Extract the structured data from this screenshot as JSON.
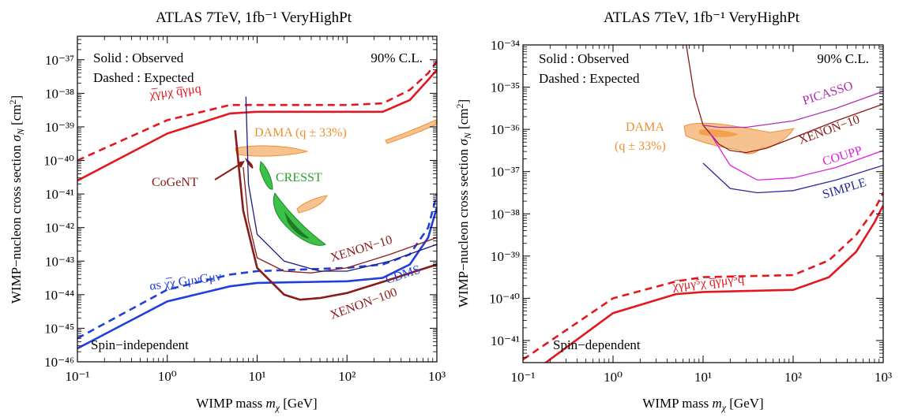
{
  "chart_data": [
    {
      "type": "line",
      "title": "ATLAS 7TeV, 1fb⁻¹ VeryHighPt",
      "xlabel": "WIMP mass mχ [GeV]",
      "ylabel": "WIMP−nucleon cross section σN [cm²]",
      "xscale": "log",
      "yscale": "log",
      "xlim": [
        0.1,
        1000
      ],
      "ylim": [
        1e-46,
        5e-37
      ],
      "x_ticks": [
        0.1,
        1,
        10,
        100,
        1000
      ],
      "y_ticks": [
        -46,
        -45,
        -44,
        -43,
        -42,
        -41,
        -40,
        -39,
        -38,
        -37
      ],
      "legend_text": {
        "line1": "Solid : Observed",
        "line2": "Dashed : Expected"
      },
      "cl_text": "90% C.L.",
      "region_text": "Spin−independent",
      "operator_labels": {
        "vector": "χ̅γμχ q̅γμq",
        "gluon": "αs χ̅χ GμνGμν"
      },
      "experiment_labels": {
        "dama": "DAMA (q ± 33%)",
        "cogent": "CoGeNT",
        "cresst": "CRESST",
        "xenon10": "XENON−10",
        "cdms": "CDMS",
        "xenon100": "XENON−100"
      },
      "series": [
        {
          "name": "χ̅γμχ q̅γμq",
          "style": "solid",
          "color": "#e3181e",
          "x": [
            0.1,
            1,
            5,
            10,
            100,
            250,
            500,
            800,
            1000
          ],
          "y": [
            -40.6,
            -39.2,
            -38.6,
            -38.55,
            -38.55,
            -38.55,
            -38.2,
            -37.6,
            -37.3
          ]
        },
        {
          "name": "χ̅γμχ q̅γμq",
          "style": "dashed",
          "color": "#e3181e",
          "x": [
            0.1,
            1,
            5,
            10,
            100,
            250,
            500,
            800,
            1000
          ],
          "y": [
            -40.0,
            -38.8,
            -38.35,
            -38.35,
            -38.35,
            -38.3,
            -37.9,
            -37.4,
            -37.05
          ]
        },
        {
          "name": "αs χ̅χ GμνGμν",
          "style": "solid",
          "color": "#1f3fdc",
          "x": [
            0.1,
            1,
            5,
            10,
            100,
            250,
            500,
            800,
            1000
          ],
          "y": [
            -45.6,
            -44.2,
            -43.75,
            -43.65,
            -43.6,
            -43.5,
            -43.1,
            -42.3,
            -41.4
          ]
        },
        {
          "name": "αs χ̅χ GμνGμν",
          "style": "dashed",
          "color": "#1f3fdc",
          "x": [
            0.1,
            1,
            5,
            10,
            100,
            250,
            500,
            800,
            1000
          ],
          "y": [
            -45.3,
            -43.85,
            -43.4,
            -43.3,
            -43.2,
            -43.1,
            -42.8,
            -42.0,
            -41.0
          ]
        },
        {
          "name": "XENON−100",
          "style": "solid",
          "color": "#8b1a1a",
          "x": [
            5.7,
            7,
            10,
            20,
            30,
            50,
            100,
            300,
            1000
          ],
          "y": [
            -39.1,
            -41.5,
            -43.2,
            -44.0,
            -44.15,
            -44.1,
            -43.95,
            -43.55,
            -43.1
          ]
        },
        {
          "name": "XENON−10",
          "style": "solid",
          "color": "#8b1a1a",
          "x": [
            7,
            8,
            10,
            20,
            40,
            100,
            300,
            1000
          ],
          "y": [
            -40.2,
            -41.8,
            -42.9,
            -43.3,
            -43.35,
            -43.2,
            -42.8,
            -42.3
          ]
        },
        {
          "name": "CDMS",
          "style": "solid",
          "color": "#1a1a8a",
          "x": [
            7.5,
            8,
            10,
            20,
            50,
            100,
            300,
            1000
          ],
          "y": [
            -38.1,
            -40.7,
            -42.2,
            -43.0,
            -43.3,
            -43.3,
            -43.0,
            -42.5
          ]
        }
      ]
    },
    {
      "type": "line",
      "title": "ATLAS 7TeV, 1fb⁻¹ VeryHighPt",
      "xlabel": "WIMP mass mχ [GeV]",
      "ylabel": "WIMP−nucleon cross section σN [cm²]",
      "xscale": "log",
      "yscale": "log",
      "xlim": [
        0.1,
        1000
      ],
      "ylim": [
        3e-42,
        1e-34
      ],
      "x_ticks": [
        0.1,
        1,
        10,
        100,
        1000
      ],
      "y_ticks": [
        -41,
        -40,
        -39,
        -38,
        -37,
        -36,
        -35,
        -34
      ],
      "legend_text": {
        "line1": "Solid : Observed",
        "line2": "Dashed : Expected"
      },
      "cl_text": "90% C.L.",
      "region_text": "Spin−dependent",
      "operator_labels": {
        "axial": "χ̅γμγ⁵χ q̅γμγ⁵q"
      },
      "experiment_labels": {
        "dama": "DAMA",
        "dama2": "(q ± 33%)",
        "picasso": "PICASSO",
        "xenon10": "XENON−10",
        "coupp": "COUPP",
        "simple": "SIMPLE"
      },
      "series": [
        {
          "name": "χ̅γμγ⁵χ q̅γμγ⁵q",
          "style": "solid",
          "color": "#e3181e",
          "x": [
            0.16,
            1,
            5,
            10,
            100,
            250,
            500,
            800,
            1000
          ],
          "y": [
            -41.6,
            -40.35,
            -39.9,
            -39.85,
            -39.8,
            -39.5,
            -38.9,
            -38.2,
            -37.8
          ]
        },
        {
          "name": "χ̅γμγ⁵χ q̅γμγ⁵q",
          "style": "dashed",
          "color": "#e3181e",
          "x": [
            0.1,
            1,
            5,
            10,
            100,
            250,
            500,
            800,
            1000
          ],
          "y": [
            -41.45,
            -40.0,
            -39.6,
            -39.5,
            -39.45,
            -39.1,
            -38.5,
            -37.9,
            -37.5
          ]
        },
        {
          "name": "XENON−10",
          "style": "solid",
          "color": "#8b1a1a",
          "x": [
            6.5,
            8,
            10,
            15,
            20,
            30,
            50,
            100,
            300,
            1000
          ],
          "y": [
            -34.0,
            -35.2,
            -35.9,
            -36.35,
            -36.5,
            -36.55,
            -36.45,
            -36.2,
            -35.8,
            -35.4
          ]
        },
        {
          "name": "PICASSO",
          "style": "solid",
          "color": "#b030b0",
          "x": [
            10,
            15,
            30,
            100,
            300,
            1000
          ],
          "y": [
            -35.9,
            -35.95,
            -35.95,
            -35.8,
            -35.5,
            -35.1
          ]
        },
        {
          "name": "COUPP",
          "style": "solid",
          "color": "#e020e0",
          "x": [
            12,
            20,
            40,
            100,
            300,
            1000
          ],
          "y": [
            -36.1,
            -36.85,
            -37.2,
            -37.15,
            -36.9,
            -36.5
          ]
        },
        {
          "name": "SIMPLE",
          "style": "solid",
          "color": "#2a2a9a",
          "x": [
            10,
            20,
            40,
            100,
            300,
            1000
          ],
          "y": [
            -36.8,
            -37.4,
            -37.5,
            -37.45,
            -37.2,
            -36.85
          ]
        }
      ]
    }
  ]
}
